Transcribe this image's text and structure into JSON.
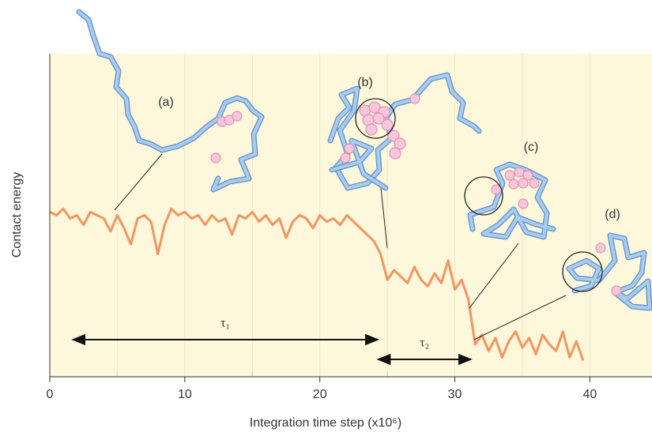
{
  "chart_data": {
    "type": "line",
    "y_label": "Contact energy",
    "x_label": "Integration time step (x10⁶)",
    "xlim": [
      0,
      44.6
    ],
    "ylim": [
      0,
      1
    ],
    "xticks": [
      0,
      10,
      20,
      30,
      40
    ],
    "xminor_ticks": [
      5,
      15,
      25,
      35
    ],
    "background": "#fdf8dc",
    "series": [
      {
        "name": "Contact energy",
        "color": "#f4955f",
        "x": [
          0,
          0.5,
          1,
          1.5,
          2,
          2.5,
          3,
          3.5,
          4,
          4.5,
          5,
          5.5,
          6,
          6.5,
          7,
          7.5,
          8,
          8.5,
          9,
          9.5,
          10,
          10.5,
          11,
          11.5,
          12,
          12.5,
          13,
          13.5,
          14,
          14.5,
          15,
          15.5,
          16,
          16.5,
          17,
          17.5,
          18,
          18.5,
          19,
          19.5,
          20,
          20.5,
          21,
          21.5,
          22,
          22.5,
          23,
          23.5,
          24,
          24.5,
          25,
          25.5,
          26,
          26.5,
          27,
          27.5,
          28,
          28.5,
          29,
          29.5,
          30,
          30.5,
          31,
          31.5,
          32,
          32.5,
          33,
          33.5,
          34,
          34.5,
          35,
          35.5,
          36,
          36.5,
          37,
          37.5,
          38,
          38.5,
          39,
          39.5
        ],
        "values": [
          0.51,
          0.5,
          0.52,
          0.49,
          0.5,
          0.47,
          0.51,
          0.5,
          0.49,
          0.45,
          0.5,
          0.46,
          0.41,
          0.49,
          0.5,
          0.48,
          0.38,
          0.47,
          0.52,
          0.5,
          0.51,
          0.49,
          0.5,
          0.47,
          0.5,
          0.48,
          0.49,
          0.44,
          0.5,
          0.49,
          0.51,
          0.48,
          0.5,
          0.47,
          0.49,
          0.43,
          0.48,
          0.5,
          0.49,
          0.46,
          0.5,
          0.48,
          0.49,
          0.47,
          0.5,
          0.48,
          0.46,
          0.44,
          0.42,
          0.38,
          0.3,
          0.33,
          0.31,
          0.29,
          0.34,
          0.3,
          0.28,
          0.32,
          0.29,
          0.36,
          0.27,
          0.3,
          0.24,
          0.1,
          0.13,
          0.08,
          0.12,
          0.06,
          0.11,
          0.14,
          0.09,
          0.12,
          0.07,
          0.13,
          0.1,
          0.08,
          0.14,
          0.06,
          0.11,
          0.05
        ]
      }
    ],
    "intervals": [
      {
        "label": "τ₁",
        "x": [
          1.7,
          24.3
        ]
      },
      {
        "label": "τ₂",
        "x": [
          24.3,
          31.2
        ]
      }
    ],
    "annotations": [
      "(a)",
      "(b)",
      "(c)",
      "(d)"
    ]
  }
}
